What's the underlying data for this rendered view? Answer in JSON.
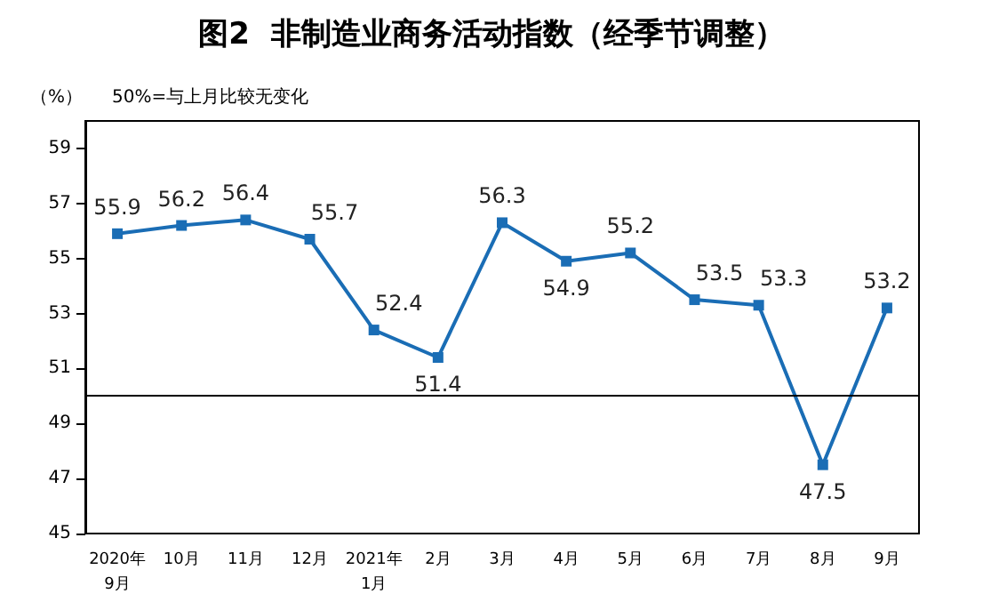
{
  "chart_data": {
    "type": "line",
    "title": "图2  非制造业商务活动指数（经季节调整）",
    "ylabel": "（%）",
    "annotations": [
      "50%=与上月比较无变化"
    ],
    "categories": [
      "2020年\n9月",
      "10月",
      "11月",
      "12月",
      "2021年\n1月",
      "2月",
      "3月",
      "4月",
      "5月",
      "6月",
      "7月",
      "8月",
      "9月"
    ],
    "series": [
      {
        "color": "#1a6db5",
        "values": [
          55.9,
          56.2,
          56.4,
          55.7,
          52.4,
          51.4,
          56.3,
          54.9,
          55.2,
          53.5,
          53.3,
          47.5,
          53.2
        ]
      }
    ],
    "ylim": [
      45,
      60
    ],
    "yticks": [
      45,
      47,
      49,
      51,
      53,
      55,
      57,
      59
    ],
    "ref_lines": [
      {
        "axis": "y",
        "value": 50,
        "color": "#000000"
      }
    ],
    "data_labels": true,
    "marker": "square",
    "grid": false
  }
}
